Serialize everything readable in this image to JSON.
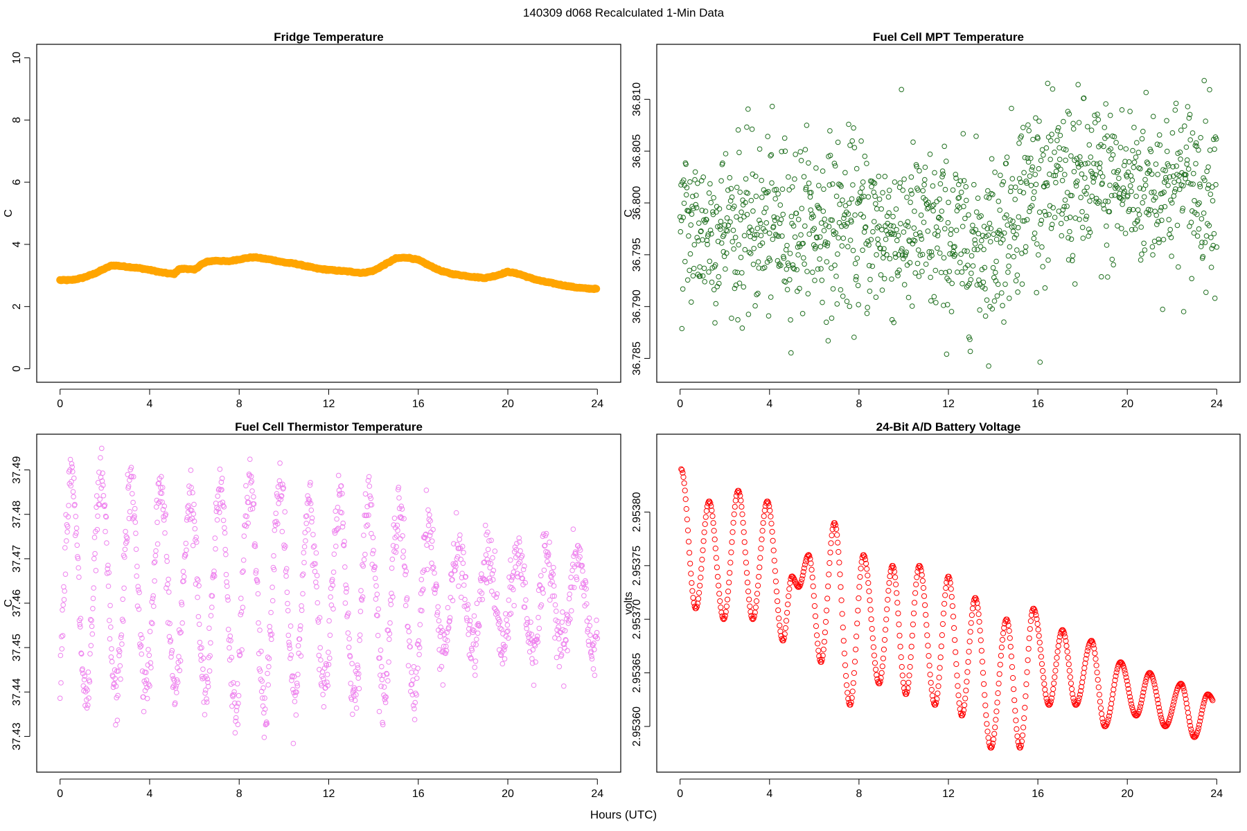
{
  "figure": {
    "suptitle": "140309   d068   Recalculated 1-Min Data",
    "xlabel": "Hours (UTC)"
  },
  "chart_data": [
    {
      "type": "line",
      "title": "Fridge Temperature",
      "ylabel": "C",
      "xlim": [
        0,
        24
      ],
      "ylim": [
        0,
        10
      ],
      "xticks": [
        0,
        4,
        8,
        12,
        16,
        20,
        24
      ],
      "yticks": [
        0,
        2,
        4,
        6,
        8,
        10
      ],
      "color": "#FFA500",
      "style": "thick-line",
      "x": [
        0,
        0.5,
        1,
        1.5,
        2,
        2.3,
        2.5,
        3,
        3.5,
        4,
        4.5,
        5,
        5.1,
        5.3,
        5.6,
        5.8,
        6,
        6.3,
        6.6,
        7,
        7.5,
        8,
        8.5,
        8.8,
        9,
        9.5,
        10,
        10.5,
        11,
        11.5,
        12,
        12.5,
        13,
        13.5,
        14,
        14.5,
        15,
        15.5,
        16,
        16.5,
        17,
        17.5,
        18,
        18.5,
        19,
        19.5,
        20,
        20.5,
        21,
        21.5,
        22,
        22.5,
        23,
        23.5,
        24
      ],
      "y": [
        2.85,
        2.85,
        2.92,
        3.05,
        3.22,
        3.32,
        3.32,
        3.28,
        3.24,
        3.18,
        3.1,
        3.05,
        3.05,
        3.2,
        3.22,
        3.2,
        3.18,
        3.35,
        3.45,
        3.48,
        3.45,
        3.52,
        3.58,
        3.58,
        3.55,
        3.5,
        3.42,
        3.38,
        3.3,
        3.22,
        3.18,
        3.15,
        3.12,
        3.08,
        3.15,
        3.35,
        3.55,
        3.58,
        3.5,
        3.32,
        3.15,
        3.05,
        3.0,
        2.95,
        2.92,
        3.0,
        3.12,
        3.05,
        2.92,
        2.82,
        2.75,
        2.68,
        2.62,
        2.58,
        2.57
      ]
    },
    {
      "type": "scatter",
      "title": "Fuel Cell MPT Temperature",
      "ylabel": "C",
      "xlim": [
        0,
        24
      ],
      "ylim": [
        36.784,
        36.814
      ],
      "xticks": [
        0,
        4,
        8,
        12,
        16,
        20,
        24
      ],
      "yticks": [
        36.785,
        36.79,
        36.795,
        36.8,
        36.805,
        36.81
      ],
      "ytick_labels": [
        "36.785",
        "36.790",
        "36.795",
        "36.800",
        "36.805",
        "36.810"
      ],
      "color": "#1E6E1E",
      "trend_description_x": [
        0,
        8,
        12,
        14,
        15.5,
        24
      ],
      "trend_mean_y": [
        36.7975,
        36.7978,
        36.7965,
        36.7962,
        36.8015,
        36.8018
      ],
      "spread": 0.0042
    },
    {
      "type": "scatter",
      "title": "Fuel Cell Thermistor Temperature",
      "ylabel": "C",
      "xlim": [
        0,
        24
      ],
      "ylim": [
        37.425,
        37.495
      ],
      "xticks": [
        0,
        4,
        8,
        12,
        16,
        20,
        24
      ],
      "yticks": [
        37.43,
        37.44,
        37.45,
        37.46,
        37.47,
        37.48,
        37.49
      ],
      "ytick_labels": [
        "37.43",
        "37.44",
        "37.45",
        "37.46",
        "37.47",
        "37.48",
        "37.49"
      ],
      "color": "#EE82EE",
      "oscillation_period_hours": 1.33,
      "amplitude_x": [
        0,
        6,
        8,
        12,
        16,
        17,
        24
      ],
      "amplitude_values": [
        0.025,
        0.022,
        0.026,
        0.022,
        0.022,
        0.011,
        0.01
      ],
      "center_x": [
        0,
        24
      ],
      "center_values": [
        37.463,
        37.46
      ]
    },
    {
      "type": "scatter",
      "title": "24-Bit A/D Battery Voltage",
      "ylabel": "volts",
      "xlim": [
        0,
        24
      ],
      "ylim": [
        2.95357,
        2.95386
      ],
      "xticks": [
        0,
        4,
        8,
        12,
        16,
        20,
        24
      ],
      "yticks": [
        2.9536,
        2.95365,
        2.9537,
        2.95375,
        2.9538
      ],
      "ytick_labels": [
        "2.95360",
        "2.95365",
        "2.95370",
        "2.95375",
        "2.95380"
      ],
      "color": "#FF0000",
      "extrema": [
        [
          0.05,
          2.95384
        ],
        [
          0.7,
          2.95371
        ],
        [
          1.3,
          2.95381
        ],
        [
          1.95,
          2.9537
        ],
        [
          2.6,
          2.95382
        ],
        [
          3.25,
          2.9537
        ],
        [
          3.9,
          2.95381
        ],
        [
          4.6,
          2.95368
        ],
        [
          5.0,
          2.95374
        ],
        [
          5.3,
          2.95373
        ],
        [
          5.75,
          2.95376
        ],
        [
          6.3,
          2.95366
        ],
        [
          6.9,
          2.95379
        ],
        [
          7.6,
          2.95362
        ],
        [
          8.2,
          2.95376
        ],
        [
          8.9,
          2.95364
        ],
        [
          9.5,
          2.95375
        ],
        [
          10.1,
          2.95363
        ],
        [
          10.7,
          2.95375
        ],
        [
          11.4,
          2.95362
        ],
        [
          12.0,
          2.95374
        ],
        [
          12.6,
          2.95361
        ],
        [
          13.2,
          2.95372
        ],
        [
          13.9,
          2.95358
        ],
        [
          14.6,
          2.9537
        ],
        [
          15.2,
          2.95358
        ],
        [
          15.8,
          2.95371
        ],
        [
          16.5,
          2.95362
        ],
        [
          17.1,
          2.95369
        ],
        [
          17.7,
          2.95362
        ],
        [
          18.4,
          2.95368
        ],
        [
          19.0,
          2.9536
        ],
        [
          19.7,
          2.95366
        ],
        [
          20.4,
          2.95361
        ],
        [
          21.0,
          2.95365
        ],
        [
          21.7,
          2.9536
        ],
        [
          22.4,
          2.95364
        ],
        [
          23.0,
          2.95359
        ],
        [
          23.6,
          2.95363
        ],
        [
          24.0,
          2.95362
        ]
      ]
    }
  ]
}
